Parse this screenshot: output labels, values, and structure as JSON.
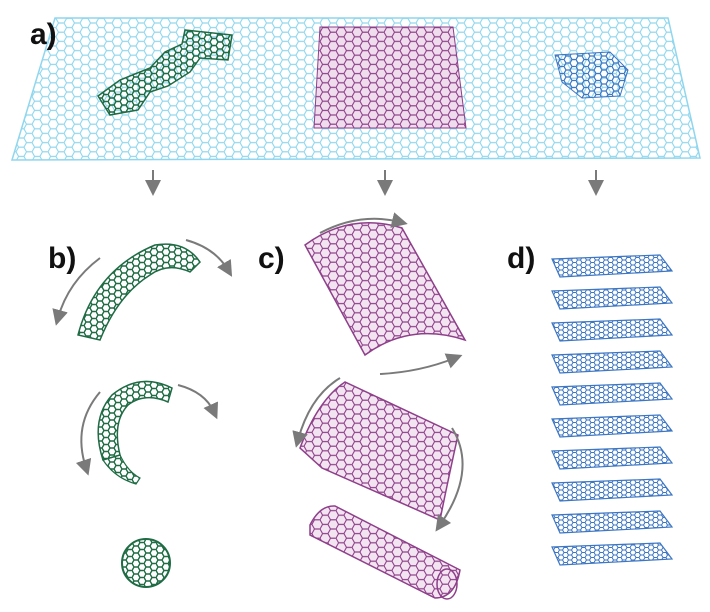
{
  "labels": {
    "a": "a)",
    "b": "b)",
    "c": "c)",
    "d": "d)"
  },
  "colors": {
    "sheet": "#8fd6ee",
    "fullerene": "#1f6b44",
    "nanotube": "#8e3f8a",
    "nanotube_fill": "#e4c6df",
    "graphite": "#3d76c2",
    "arrow": "#7a7a7a"
  },
  "icons": [
    "down-arrow-icon",
    "curved-arrow-icon"
  ]
}
